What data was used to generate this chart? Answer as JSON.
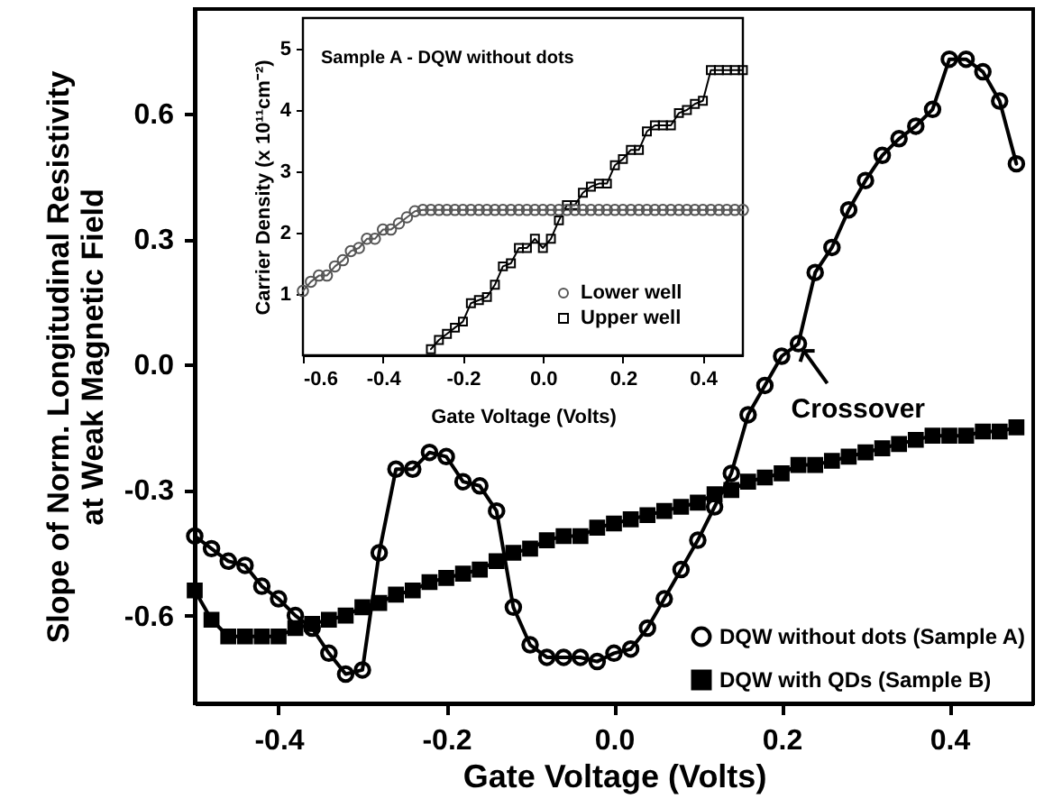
{
  "chart_data": [
    {
      "type": "line",
      "xlabel": "Gate Voltage (Volts)",
      "ylabel": "Slope of Norm. Longitudinal Resistivity at Weak Magnetic Field",
      "xlim": [
        -0.5,
        0.5
      ],
      "ylim": [
        -0.81,
        0.85
      ],
      "xticks": [
        {
          "value": -0.4,
          "label": "-0.4"
        },
        {
          "value": -0.2,
          "label": "-0.2"
        },
        {
          "value": 0,
          "label": "0.0"
        },
        {
          "value": 0.2,
          "label": "0.2"
        },
        {
          "value": 0.4,
          "label": "0.4"
        }
      ],
      "yticks": [
        {
          "value": -0.6,
          "label": "-0.6"
        },
        {
          "value": -0.3,
          "label": "-0.3"
        },
        {
          "value": 0,
          "label": "0.0"
        },
        {
          "value": 0.3,
          "label": "0.3"
        },
        {
          "value": 0.6,
          "label": "0.6"
        }
      ],
      "x": [
        -0.5,
        -0.48,
        -0.46,
        -0.44,
        -0.42,
        -0.4,
        -0.38,
        -0.36,
        -0.34,
        -0.32,
        -0.3,
        -0.28,
        -0.26,
        -0.24,
        -0.22,
        -0.2,
        -0.18,
        -0.16,
        -0.14,
        -0.12,
        -0.1,
        -0.08,
        -0.06,
        -0.04,
        -0.02,
        0.0,
        0.02,
        0.04,
        0.06,
        0.08,
        0.1,
        0.12,
        0.14,
        0.16,
        0.18,
        0.2,
        0.22,
        0.24,
        0.26,
        0.28,
        0.3,
        0.32,
        0.34,
        0.36,
        0.38,
        0.4,
        0.42,
        0.44,
        0.46,
        0.48
      ],
      "series": [
        {
          "name": "DQW without dots (Sample A)",
          "color": "#000000",
          "marker": "circle",
          "values": [
            -0.41,
            -0.44,
            -0.47,
            -0.48,
            -0.53,
            -0.56,
            -0.6,
            -0.63,
            -0.69,
            -0.74,
            -0.73,
            -0.45,
            -0.25,
            -0.25,
            -0.21,
            -0.22,
            -0.28,
            -0.29,
            -0.35,
            -0.58,
            -0.67,
            -0.7,
            -0.7,
            -0.7,
            -0.71,
            -0.69,
            -0.68,
            -0.63,
            -0.56,
            -0.49,
            -0.42,
            -0.34,
            -0.26,
            -0.12,
            -0.05,
            0.02,
            0.05,
            0.22,
            0.28,
            0.37,
            0.44,
            0.5,
            0.54,
            0.57,
            0.61,
            0.73,
            0.73,
            0.7,
            0.63,
            0.48
          ]
        },
        {
          "name": "DQW with QDs (Sample B)",
          "color": "#000000",
          "marker": "square",
          "values": [
            -0.54,
            -0.61,
            -0.65,
            -0.65,
            -0.65,
            -0.65,
            -0.63,
            -0.62,
            -0.61,
            -0.6,
            -0.58,
            -0.57,
            -0.55,
            -0.54,
            -0.52,
            -0.51,
            -0.5,
            -0.49,
            -0.47,
            -0.45,
            -0.44,
            -0.42,
            -0.41,
            -0.41,
            -0.39,
            -0.38,
            -0.37,
            -0.36,
            -0.35,
            -0.34,
            -0.33,
            -0.31,
            -0.3,
            -0.28,
            -0.27,
            -0.26,
            -0.24,
            -0.24,
            -0.23,
            -0.22,
            -0.21,
            -0.2,
            -0.19,
            -0.18,
            -0.17,
            -0.17,
            -0.17,
            -0.16,
            -0.16,
            -0.15
          ]
        }
      ],
      "annotations": [
        {
          "text": "Crossover",
          "x": 0.22,
          "y": 0.05
        }
      ],
      "legend": "bottom right"
    },
    {
      "type": "line",
      "xlabel": "Gate Voltage (Volts)",
      "ylabel": "Carrier Density (x 10¹¹cm⁻²)",
      "xlim": [
        -0.6,
        0.5
      ],
      "ylim": [
        0,
        5.5
      ],
      "xticks": [
        {
          "value": -0.6,
          "label": "-0.6"
        },
        {
          "value": -0.4,
          "label": "-0.4"
        },
        {
          "value": -0.2,
          "label": "-0.2"
        },
        {
          "value": 0,
          "label": "0.0"
        },
        {
          "value": 0.2,
          "label": "0.2"
        },
        {
          "value": 0.4,
          "label": "0.4"
        }
      ],
      "yticks": [
        1,
        2,
        3,
        4,
        5
      ],
      "series": [
        {
          "name": "Lower well",
          "color": "#555555",
          "marker": "circle",
          "x": [
            -0.6,
            -0.58,
            -0.56,
            -0.54,
            -0.52,
            -0.5,
            -0.48,
            -0.46,
            -0.44,
            -0.42,
            -0.4,
            -0.38,
            -0.36,
            -0.34,
            -0.32,
            -0.3,
            -0.28,
            -0.26,
            -0.24,
            -0.22,
            -0.2,
            -0.18,
            -0.16,
            -0.14,
            -0.12,
            -0.1,
            -0.08,
            -0.06,
            -0.04,
            -0.02,
            0.0,
            0.02,
            0.04,
            0.06,
            0.08,
            0.1,
            0.12,
            0.14,
            0.16,
            0.18,
            0.2,
            0.22,
            0.24,
            0.26,
            0.28,
            0.3,
            0.32,
            0.34,
            0.36,
            0.38,
            0.4,
            0.42,
            0.44,
            0.46,
            0.48,
            0.5
          ],
          "values": [
            1.05,
            1.2,
            1.3,
            1.3,
            1.45,
            1.55,
            1.7,
            1.75,
            1.9,
            1.9,
            2.05,
            2.05,
            2.15,
            2.25,
            2.35,
            2.37,
            2.37,
            2.37,
            2.37,
            2.37,
            2.37,
            2.37,
            2.37,
            2.37,
            2.37,
            2.37,
            2.37,
            2.37,
            2.37,
            2.37,
            2.37,
            2.37,
            2.37,
            2.37,
            2.37,
            2.37,
            2.37,
            2.37,
            2.37,
            2.37,
            2.37,
            2.37,
            2.37,
            2.37,
            2.37,
            2.37,
            2.37,
            2.37,
            2.37,
            2.37,
            2.37,
            2.37,
            2.37,
            2.37,
            2.37,
            2.37
          ]
        },
        {
          "name": "Upper well",
          "color": "#000000",
          "marker": "square",
          "x": [
            -0.28,
            -0.26,
            -0.24,
            -0.22,
            -0.2,
            -0.18,
            -0.16,
            -0.14,
            -0.12,
            -0.1,
            -0.08,
            -0.06,
            -0.04,
            -0.02,
            0.0,
            0.02,
            0.04,
            0.06,
            0.08,
            0.1,
            0.12,
            0.14,
            0.16,
            0.18,
            0.2,
            0.22,
            0.24,
            0.26,
            0.28,
            0.3,
            0.32,
            0.34,
            0.36,
            0.38,
            0.4,
            0.42,
            0.44,
            0.46,
            0.48,
            0.5
          ],
          "values": [
            0.1,
            0.25,
            0.35,
            0.45,
            0.55,
            0.85,
            0.9,
            0.95,
            1.15,
            1.45,
            1.5,
            1.75,
            1.75,
            1.9,
            1.75,
            1.9,
            2.2,
            2.45,
            2.45,
            2.65,
            2.75,
            2.8,
            2.8,
            3.1,
            3.2,
            3.35,
            3.35,
            3.65,
            3.75,
            3.75,
            3.75,
            3.95,
            4.0,
            4.1,
            4.15,
            4.65,
            4.65,
            4.65,
            4.65,
            4.65
          ]
        }
      ],
      "annotations": [
        "Sample A - DQW without dots"
      ],
      "legend": "bottom right"
    }
  ]
}
